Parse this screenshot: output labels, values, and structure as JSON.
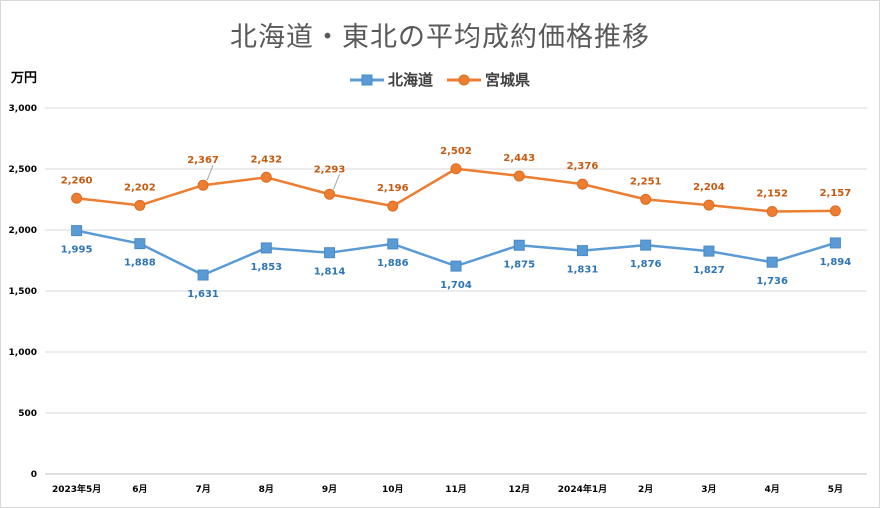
{
  "chart_data": {
    "type": "line",
    "title": "北海道・東北の平均成約価格推移",
    "ylabel": "万円",
    "xlabel": "",
    "categories": [
      "2023年5月",
      "6月",
      "7月",
      "8月",
      "9月",
      "10月",
      "11月",
      "12月",
      "2024年1月",
      "2月",
      "3月",
      "4月",
      "5月"
    ],
    "ylim": [
      0,
      3000
    ],
    "yticks": [
      0,
      500,
      1000,
      1500,
      2000,
      2500,
      3000
    ],
    "ytick_labels": [
      "0",
      "500",
      "1,000",
      "1,500",
      "2,000",
      "2,500",
      "3,000"
    ],
    "grid": true,
    "legend": "top-center",
    "series": [
      {
        "name": "北海道",
        "color": "#5b9bd5",
        "label_color": "#2e75b6",
        "marker": "square",
        "values": [
          1995,
          1888,
          1631,
          1853,
          1814,
          1886,
          1704,
          1875,
          1831,
          1876,
          1827,
          1736,
          1894
        ],
        "labels": [
          "1,995",
          "1,888",
          "1,631",
          "1,853",
          "1,814",
          "1,886",
          "1,704",
          "1,875",
          "1,831",
          "1,876",
          "1,827",
          "1,736",
          "1,894"
        ]
      },
      {
        "name": "宮城県",
        "color": "#ed7d31",
        "label_color": "#c55a11",
        "marker": "circle",
        "values": [
          2260,
          2202,
          2367,
          2432,
          2293,
          2196,
          2502,
          2443,
          2376,
          2251,
          2204,
          2152,
          2157
        ],
        "labels": [
          "2,260",
          "2,202",
          "2,367",
          "2,432",
          "2,293",
          "2,196",
          "2,502",
          "2,443",
          "2,376",
          "2,251",
          "2,204",
          "2,152",
          "2,157"
        ]
      }
    ]
  }
}
